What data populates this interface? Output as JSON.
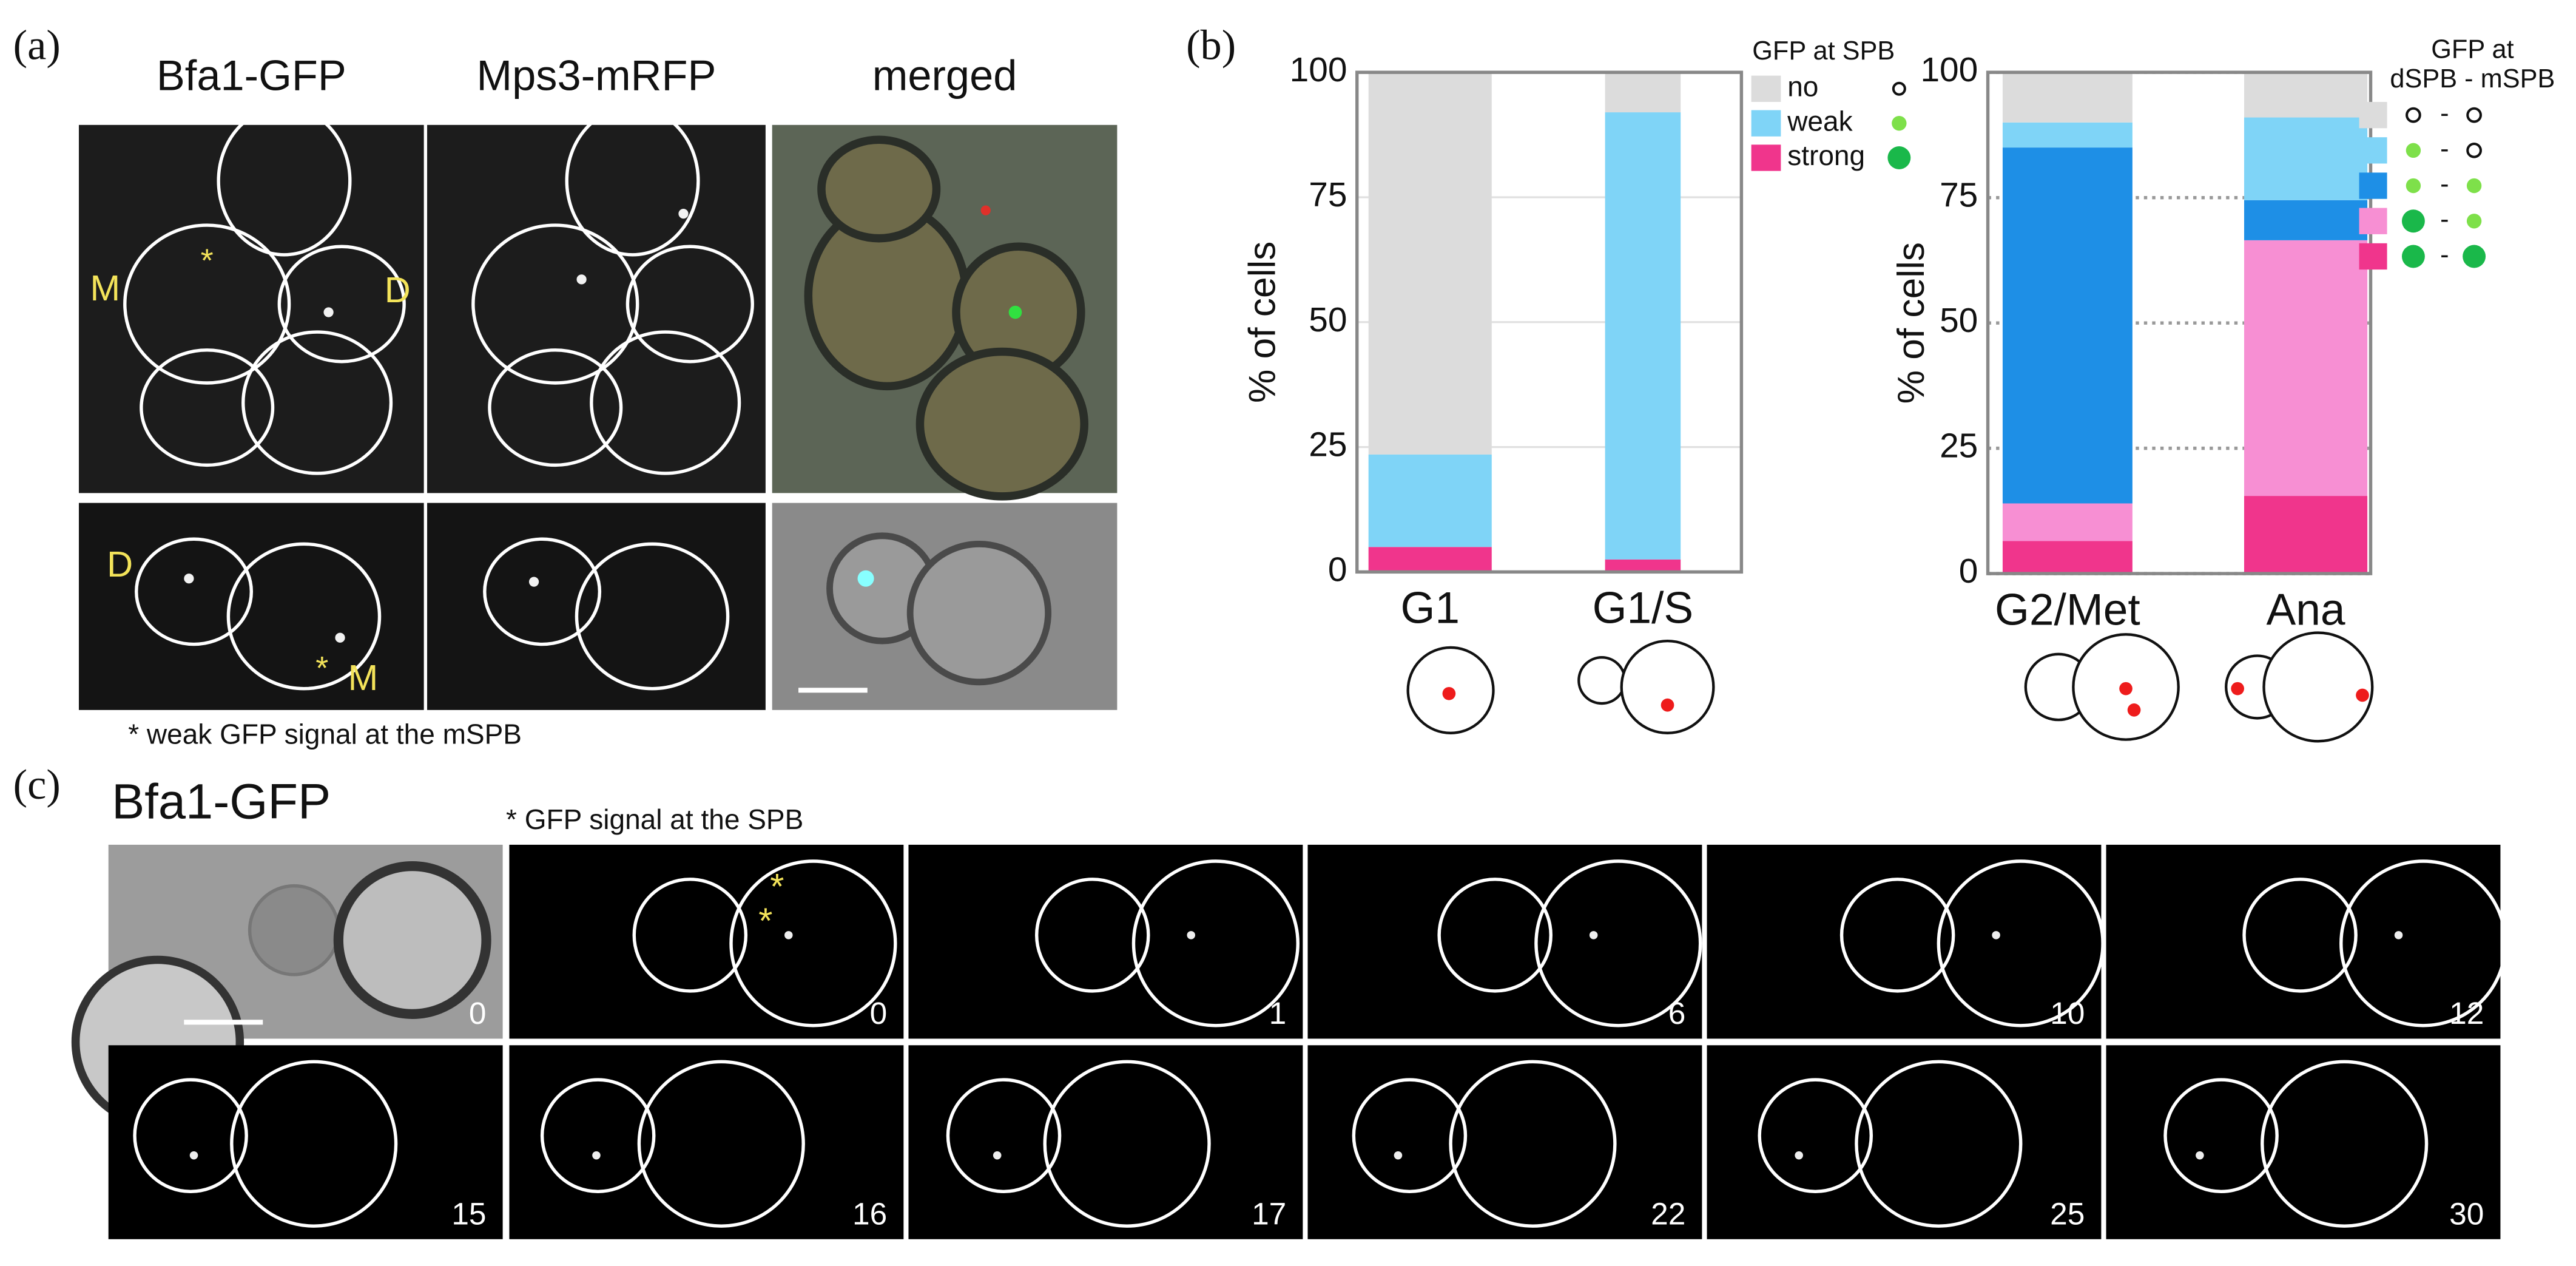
{
  "panel_a": {
    "label": "(a)",
    "columns": [
      "Bfa1-GFP",
      "Mps3-mRFP",
      "merged"
    ],
    "image_labels": [
      "M",
      "*",
      "D",
      "D",
      "*",
      "M"
    ],
    "note": "* weak GFP signal at the mSPB"
  },
  "panel_b": {
    "label": "(b)"
  },
  "panel_c": {
    "label": "(c)",
    "title": "Bfa1-GFP",
    "note": "* GFP signal at the SPB",
    "markers": [
      "*",
      "*"
    ],
    "times": [
      0,
      0,
      1,
      6,
      10,
      12,
      15,
      16,
      17,
      22,
      25,
      30
    ]
  },
  "chart_data": [
    {
      "type": "bar",
      "stacked": true,
      "y_label": "% of cells",
      "legend_title": "GFP at SPB",
      "categories": [
        "G1",
        "G1/S"
      ],
      "ylim": [
        0,
        100
      ],
      "yticks": [
        0,
        25,
        50,
        75,
        100
      ],
      "grid": true,
      "grid_style": "solid",
      "series": [
        {
          "name": "strong",
          "color": "#f0358c",
          "values": [
            5,
            2.5
          ]
        },
        {
          "name": "weak",
          "color": "#7fd4f7",
          "values": [
            18.5,
            89.5
          ]
        },
        {
          "name": "no",
          "color": "#dcdcdc",
          "values": [
            76.5,
            8
          ]
        }
      ]
    },
    {
      "type": "bar",
      "stacked": true,
      "y_label": "% of cells",
      "legend_title": "GFP at",
      "legend_subtitle": "dSPB - mSPB",
      "legend_separator": "-",
      "categories": [
        "G2/Met",
        "Ana"
      ],
      "ylim": [
        0,
        100
      ],
      "yticks": [
        0,
        25,
        50,
        75,
        100
      ],
      "grid": true,
      "grid_style": "dotted",
      "series": [
        {
          "color": "#f0358c",
          "values": [
            6.5,
            15.5
          ]
        },
        {
          "color": "#f78fd3",
          "values": [
            7.5,
            51
          ]
        },
        {
          "color": "#1e8fe6",
          "values": [
            71,
            8
          ]
        },
        {
          "color": "#7fd4f7",
          "values": [
            5,
            16.5
          ]
        },
        {
          "color": "#dcdcdc",
          "values": [
            10,
            9
          ]
        }
      ]
    }
  ]
}
